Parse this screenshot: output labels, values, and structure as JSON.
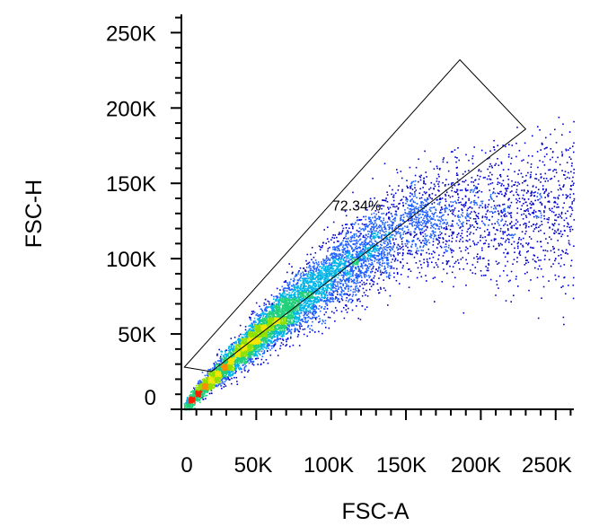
{
  "chart_data": {
    "type": "scatter",
    "plot_style": "density dot plot (pseudocolor)",
    "title": "",
    "xlabel": "FSC-A",
    "ylabel": "FSC-H",
    "xlim": [
      0,
      262144
    ],
    "ylim": [
      0,
      262144
    ],
    "x_ticks": [
      {
        "value": 0,
        "label": "0"
      },
      {
        "value": 50000,
        "label": "50K"
      },
      {
        "value": 100000,
        "label": "100K"
      },
      {
        "value": 150000,
        "label": "150K"
      },
      {
        "value": 200000,
        "label": "200K"
      },
      {
        "value": 250000,
        "label": "250K"
      }
    ],
    "y_ticks": [
      {
        "value": 0,
        "label": "0"
      },
      {
        "value": 50000,
        "label": "50K"
      },
      {
        "value": 100000,
        "label": "100K"
      },
      {
        "value": 150000,
        "label": "150K"
      },
      {
        "value": 200000,
        "label": "200K"
      },
      {
        "value": 250000,
        "label": "250K"
      }
    ],
    "minor_ticks_per_major": 5,
    "grid": false,
    "density_colors": [
      "#0000cc",
      "#1f5fff",
      "#00b4e6",
      "#21d07a",
      "#8fe000",
      "#f2e600",
      "#ff8c00",
      "#ff1e00"
    ],
    "population": {
      "description": "main cell population along diagonal, densest near (50K, 50K)",
      "approx_event_density_peak": [
        50000,
        50000
      ],
      "spread_upper_x": 262144,
      "spread_upper_y": 190000
    },
    "gate": {
      "shape": "polygon",
      "vertices": [
        [
          2000,
          28000
        ],
        [
          186000,
          232000
        ],
        [
          230000,
          186000
        ],
        [
          20000,
          25000
        ]
      ],
      "label": "72.34%",
      "label_position": [
        117000,
        132000
      ]
    }
  }
}
